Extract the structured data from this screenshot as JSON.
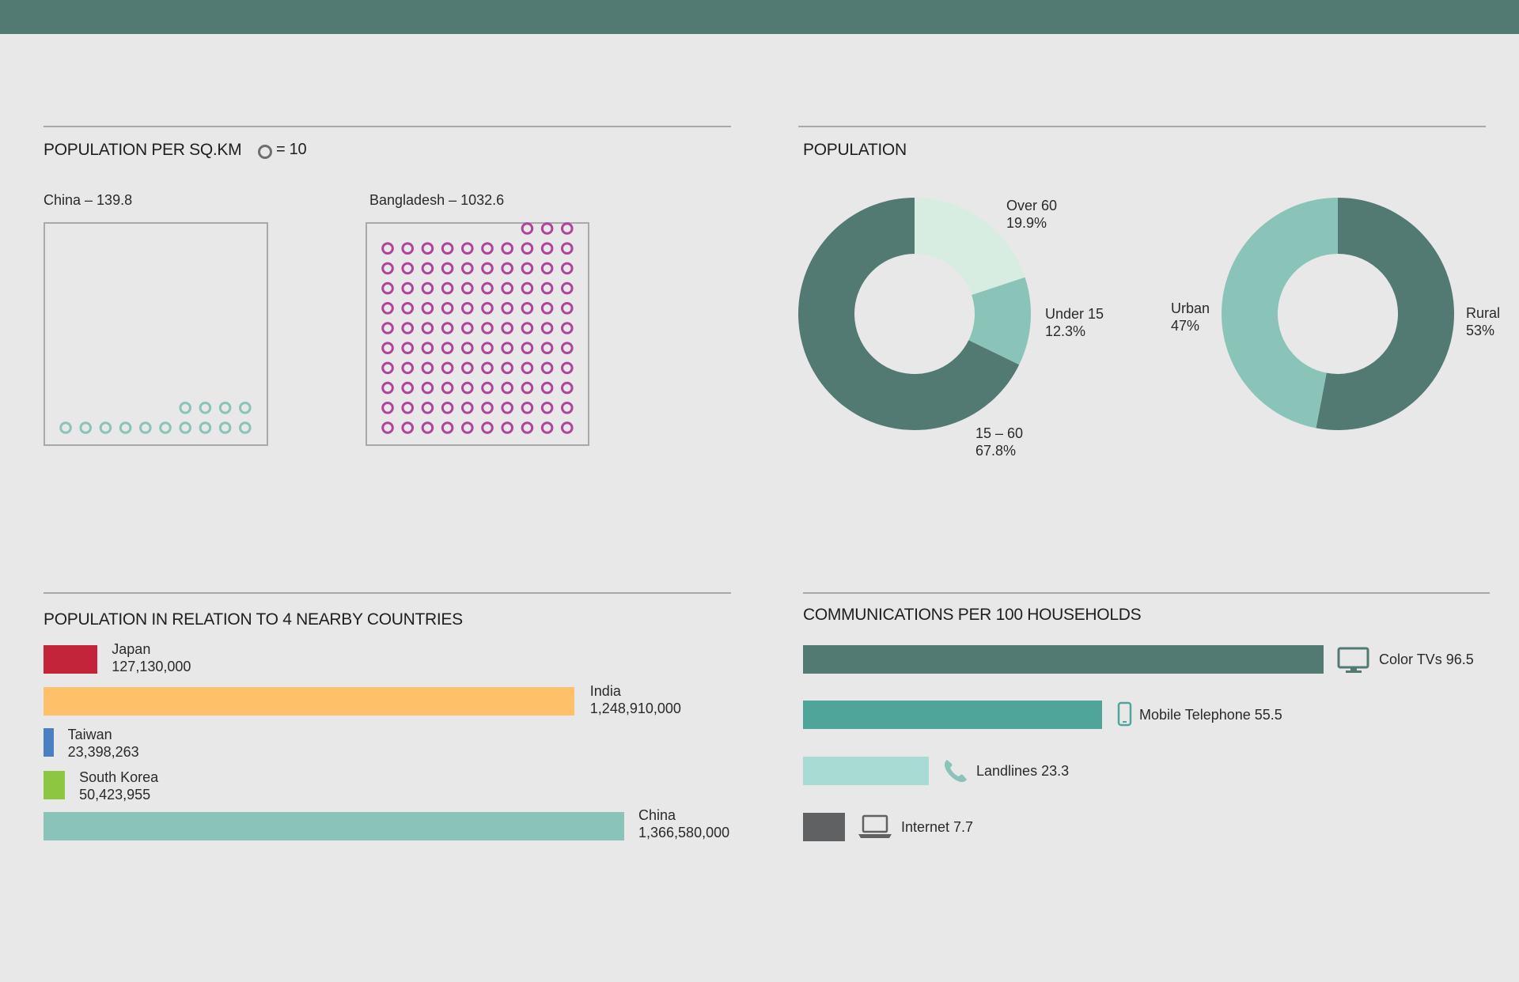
{
  "density": {
    "title": "POPULATION PER SQ.KM",
    "legend_text": "= 10",
    "china_label": "China – 139.8",
    "bangladesh_label": "Bangladesh – 1032.6",
    "china_color": "#8ac4b9",
    "bangladesh_color": "#b0449a"
  },
  "population": {
    "title": "POPULATION",
    "age": [
      {
        "name": "Over 60",
        "pct_label": "19.9%",
        "color": "#d8ede1"
      },
      {
        "name": "Under 15",
        "pct_label": "12.3%",
        "color": "#8ac4b9"
      },
      {
        "name": "15 – 60",
        "pct_label": "67.8%",
        "color": "#527a73"
      }
    ],
    "urban": [
      {
        "name": "Rural",
        "pct_label": "53%",
        "color": "#527a73"
      },
      {
        "name": "Urban",
        "pct_label": "47%",
        "color": "#8ac4b9"
      }
    ]
  },
  "countries": {
    "title": "POPULATION IN RELATION TO 4 NEARBY COUNTRIES",
    "items": [
      {
        "name": "Japan",
        "value_label": "127,130,000",
        "color": "#c3243a"
      },
      {
        "name": "India",
        "value_label": "1,248,910,000",
        "color": "#ffc06a"
      },
      {
        "name": "Taiwan",
        "value_label": "23,398,263",
        "color": "#4a7fc2"
      },
      {
        "name": "South Korea",
        "value_label": "50,423,955",
        "color": "#8dc641"
      },
      {
        "name": "China",
        "value_label": "1,366,580,000",
        "color": "#8ac4b9"
      }
    ]
  },
  "comms": {
    "title": "COMMUNICATIONS PER 100 HOUSEHOLDS",
    "items": [
      {
        "label": "Color TVs 96.5",
        "color": "#527a73",
        "icon": "tv-icon"
      },
      {
        "label": "Mobile Telephone 55.5",
        "color": "#4fa59a",
        "icon": "mobile-phone-icon"
      },
      {
        "label": "Landlines 23.3",
        "color": "#a8dbd3",
        "icon": "phone-handset-icon"
      },
      {
        "label": "Internet 7.7",
        "color": "#606163",
        "icon": "laptop-icon"
      }
    ]
  },
  "chart_data": [
    {
      "type": "pictogram",
      "title": "POPULATION PER SQ.KM",
      "unit_per_icon": 10,
      "categories": [
        "China",
        "Bangladesh"
      ],
      "values": [
        139.8,
        1032.6
      ]
    },
    {
      "type": "pie",
      "title": "POPULATION",
      "categories": [
        "Over 60",
        "Under 15",
        "15 – 60"
      ],
      "values": [
        19.9,
        12.3,
        67.8
      ]
    },
    {
      "type": "pie",
      "title": "POPULATION",
      "categories": [
        "Rural",
        "Urban"
      ],
      "values": [
        53,
        47
      ]
    },
    {
      "type": "bar",
      "title": "POPULATION IN RELATION TO 4 NEARBY COUNTRIES",
      "categories": [
        "Japan",
        "India",
        "Taiwan",
        "South Korea",
        "China"
      ],
      "values": [
        127130000,
        1248910000,
        23398263,
        50423955,
        1366580000
      ]
    },
    {
      "type": "bar",
      "title": "COMMUNICATIONS PER 100 HOUSEHOLDS",
      "categories": [
        "Color TVs",
        "Mobile Telephone",
        "Landlines",
        "Internet"
      ],
      "values": [
        96.5,
        55.5,
        23.3,
        7.7
      ]
    }
  ]
}
